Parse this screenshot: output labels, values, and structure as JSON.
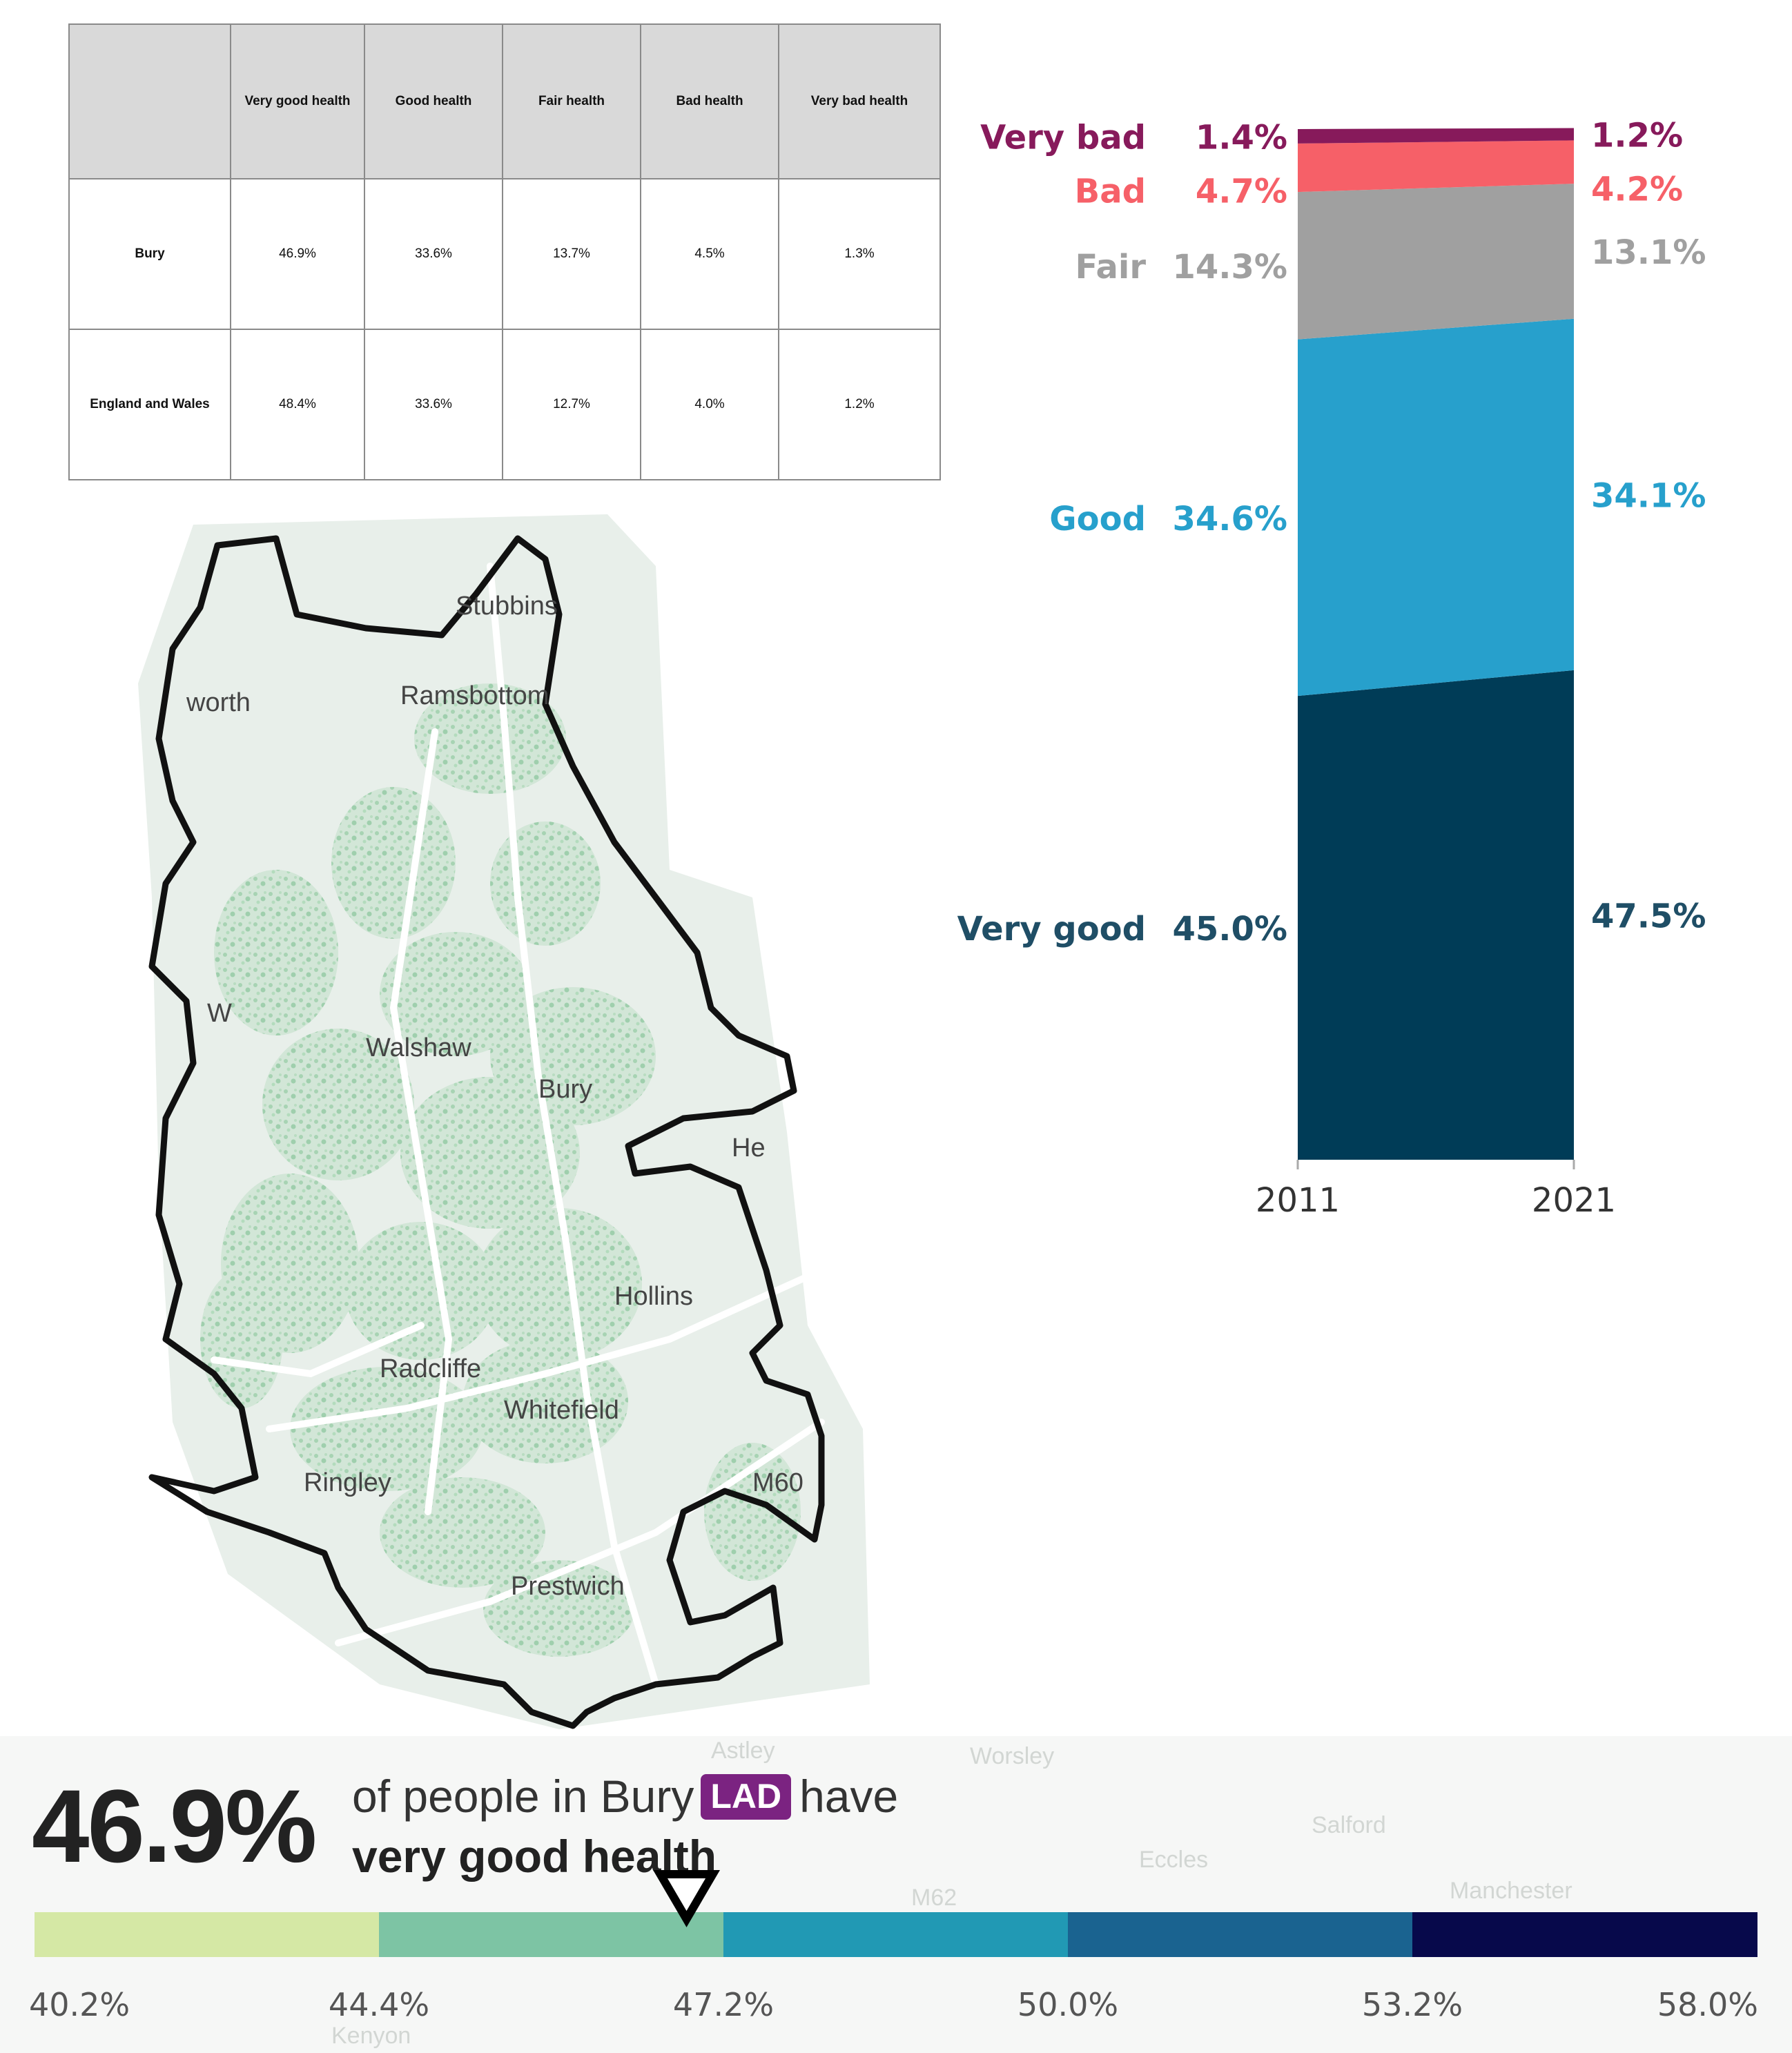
{
  "table": {
    "columns": [
      "",
      "Very good health",
      "Good health",
      "Fair health",
      "Bad health",
      "Very bad health"
    ],
    "rows": [
      {
        "area": "Bury",
        "values": [
          "46.9%",
          "33.6%",
          "13.7%",
          "4.5%",
          "1.3%"
        ]
      },
      {
        "area": "England and Wales",
        "values": [
          "48.4%",
          "33.6%",
          "12.7%",
          "4.0%",
          "1.2%"
        ]
      }
    ]
  },
  "chart_data": [
    {
      "type": "table",
      "title": "",
      "columns": [
        "Very good health",
        "Good health",
        "Fair health",
        "Bad health",
        "Very bad health"
      ],
      "rows": [
        {
          "name": "Bury",
          "values": [
            46.9,
            33.6,
            13.7,
            4.5,
            1.3
          ]
        },
        {
          "name": "England and Wales",
          "values": [
            48.4,
            33.6,
            12.7,
            4.0,
            1.2
          ]
        }
      ]
    },
    {
      "type": "area",
      "stacked": true,
      "categories": [
        "2011",
        "2021"
      ],
      "ylim": [
        0,
        100
      ],
      "series": [
        {
          "name": "Very good",
          "values": [
            45.0,
            47.5
          ],
          "labels": [
            "45.0%",
            "47.5%"
          ],
          "color": "#003c57"
        },
        {
          "name": "Good",
          "values": [
            34.6,
            34.1
          ],
          "labels": [
            "34.6%",
            "34.1%"
          ],
          "color": "#27a0cc"
        },
        {
          "name": "Fair",
          "values": [
            14.3,
            13.1
          ],
          "labels": [
            "14.3%",
            "13.1%"
          ],
          "color": "#a0a0a0"
        },
        {
          "name": "Bad",
          "values": [
            4.7,
            4.2
          ],
          "labels": [
            "4.7%",
            "4.2%"
          ],
          "color": "#f66068"
        },
        {
          "name": "Very bad",
          "values": [
            1.4,
            1.2
          ],
          "labels": [
            "1.4%",
            "1.2%"
          ],
          "color": "#871a5b"
        }
      ]
    },
    {
      "type": "bar",
      "variant": "choropleth-legend",
      "breaks": [
        40.2,
        44.4,
        47.2,
        50.0,
        53.2,
        58.0
      ],
      "break_labels": [
        "40.2%",
        "44.4%",
        "47.2%",
        "50.0%",
        "53.2%",
        "58.0%"
      ],
      "colors": [
        "#d5e8a5",
        "#7dc4a4",
        "#2199b4",
        "#1a6390",
        "#07094b"
      ],
      "marker_value": 46.9
    }
  ],
  "map": {
    "places": [
      "Stubbins",
      "Ramsbottom",
      "Walshaw",
      "Bury",
      "Hollins",
      "Radcliffe",
      "Whitefield",
      "Ringley",
      "Prestwich",
      "M60"
    ],
    "edge_labels": [
      "worth",
      "W",
      "He"
    ]
  },
  "summary": {
    "value": "46.9%",
    "line1_pre": "of people in Bury",
    "badge": "LAD",
    "line1_post": "have",
    "line2": "very good health",
    "background_places": [
      "Astley",
      "Worsley",
      "Salford",
      "Eccles",
      "M62",
      "Manchester",
      "Kenyon"
    ]
  },
  "colors": {
    "very_good": "#003c57",
    "good": "#27a0cc",
    "fair": "#a0a0a0",
    "bad": "#f66068",
    "very_bad": "#871a5b",
    "map_fill": "#e4ece7",
    "map_green": "#9fd0ad",
    "badge": "#7b2381"
  }
}
